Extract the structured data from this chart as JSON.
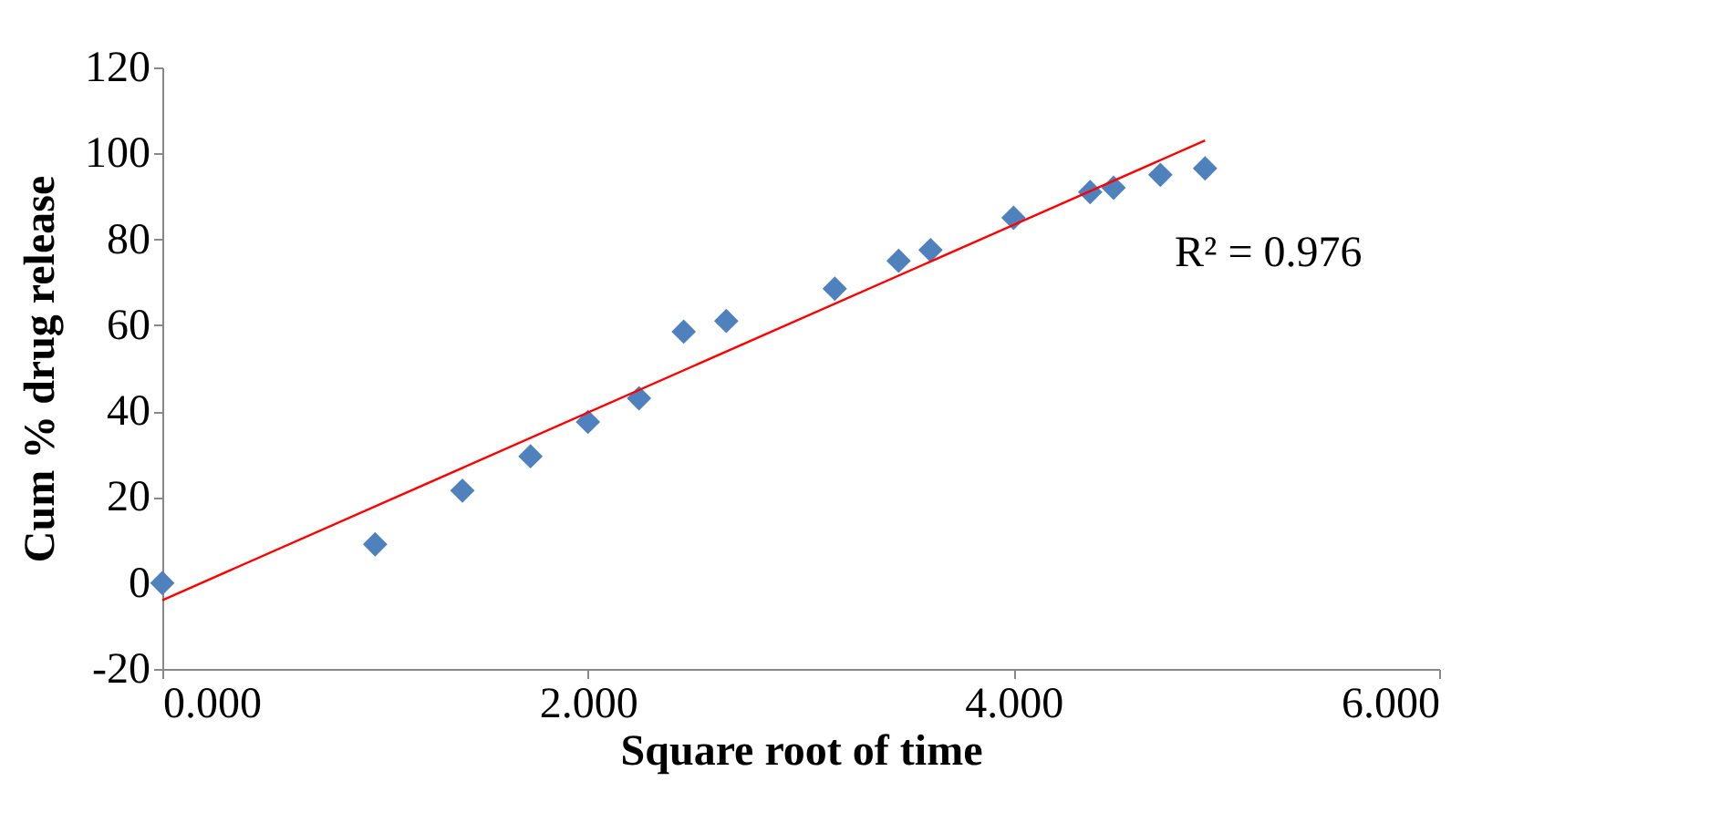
{
  "chart_data": {
    "type": "scatter",
    "xlabel": "Square root of time",
    "ylabel": "Cum % drug release",
    "xlim": [
      0,
      6
    ],
    "xticks": [
      {
        "value": 0,
        "label": "0.000"
      },
      {
        "value": 2,
        "label": "2.000"
      },
      {
        "value": 4,
        "label": "4.000"
      },
      {
        "value": 6,
        "label": "6.000"
      }
    ],
    "ylim": [
      -20,
      120
    ],
    "yticks": [
      -20,
      0,
      20,
      40,
      60,
      80,
      100,
      120
    ],
    "grid": false,
    "marker": "diamond",
    "series": [
      {
        "color": "#4f81bd",
        "x": [
          0,
          1,
          1.41,
          1.73,
          2,
          2.24,
          2.45,
          2.65,
          3.16,
          3.46,
          3.61,
          4,
          4.36,
          4.47,
          4.69,
          4.9
        ],
        "values": [
          0,
          9,
          21.5,
          29.5,
          37.5,
          43,
          58.5,
          61,
          68.5,
          75,
          77.5,
          85,
          91,
          92,
          95,
          96.5
        ]
      },
      {
        "type": "line",
        "marker": "none",
        "color": "#ff0000",
        "x": [
          0,
          4.9
        ],
        "values": [
          -4,
          103
        ]
      }
    ],
    "annotations": [
      "R² = 0.976"
    ]
  }
}
